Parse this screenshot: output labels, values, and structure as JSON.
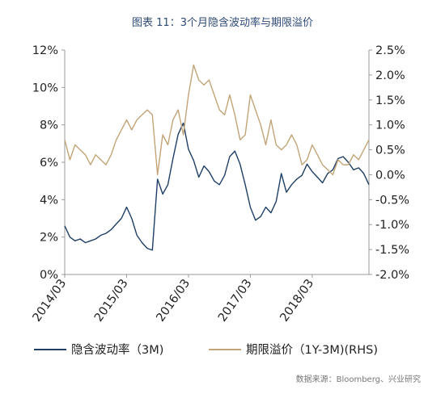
{
  "chart_data": {
    "type": "line",
    "title": "图表 11：3个月隐含波动率与期限溢价",
    "source": "数据来源：Bloomberg、兴业研究",
    "x_ticks": [
      "2014/03",
      "2015/03",
      "2016/03",
      "2017/03",
      "2018/03"
    ],
    "x_range": [
      "2014-03",
      "2019-02"
    ],
    "y_left": {
      "lim": [
        0,
        12
      ],
      "ticks": [
        0,
        2,
        4,
        6,
        8,
        10,
        12
      ],
      "tick_labels": [
        "0%",
        "2%",
        "4%",
        "6%",
        "8%",
        "10%",
        "12%"
      ]
    },
    "y_right": {
      "lim": [
        -2.0,
        2.5
      ],
      "ticks": [
        -2.0,
        -1.5,
        -1.0,
        -0.5,
        0.0,
        0.5,
        1.0,
        1.5,
        2.0,
        2.5
      ],
      "tick_labels": [
        "-2.0%",
        "-1.5%",
        "-1.0%",
        "-0.5%",
        "0.0%",
        "0.5%",
        "1.0%",
        "1.5%",
        "2.0%",
        "2.5%"
      ]
    },
    "grid": false,
    "legend_position": "bottom",
    "series": [
      {
        "name": "隐含波动率（3M)",
        "axis": "left",
        "color": "#1f3f66",
        "points": [
          [
            "2014-03",
            2.6
          ],
          [
            "2014-04",
            2.0
          ],
          [
            "2014-05",
            1.8
          ],
          [
            "2014-06",
            1.9
          ],
          [
            "2014-07",
            1.7
          ],
          [
            "2014-08",
            1.8
          ],
          [
            "2014-09",
            1.9
          ],
          [
            "2014-10",
            2.1
          ],
          [
            "2014-11",
            2.2
          ],
          [
            "2014-12",
            2.4
          ],
          [
            "2015-01",
            2.7
          ],
          [
            "2015-02",
            3.0
          ],
          [
            "2015-03",
            3.6
          ],
          [
            "2015-04",
            3.0
          ],
          [
            "2015-05",
            2.1
          ],
          [
            "2015-06",
            1.7
          ],
          [
            "2015-07",
            1.4
          ],
          [
            "2015-08",
            1.3
          ],
          [
            "2015-09",
            5.1
          ],
          [
            "2015-10",
            4.3
          ],
          [
            "2015-11",
            4.8
          ],
          [
            "2015-12",
            6.2
          ],
          [
            "2016-01",
            7.5
          ],
          [
            "2016-02",
            8.1
          ],
          [
            "2016-03",
            6.7
          ],
          [
            "2016-04",
            6.1
          ],
          [
            "2016-05",
            5.2
          ],
          [
            "2016-06",
            5.8
          ],
          [
            "2016-07",
            5.5
          ],
          [
            "2016-08",
            5.0
          ],
          [
            "2016-09",
            4.8
          ],
          [
            "2016-10",
            5.3
          ],
          [
            "2016-11",
            6.3
          ],
          [
            "2016-12",
            6.6
          ],
          [
            "2017-01",
            5.9
          ],
          [
            "2017-02",
            4.8
          ],
          [
            "2017-03",
            3.6
          ],
          [
            "2017-04",
            2.9
          ],
          [
            "2017-05",
            3.1
          ],
          [
            "2017-06",
            3.6
          ],
          [
            "2017-07",
            3.3
          ],
          [
            "2017-08",
            3.9
          ],
          [
            "2017-09",
            5.4
          ],
          [
            "2017-10",
            4.4
          ],
          [
            "2017-11",
            4.8
          ],
          [
            "2017-12",
            5.1
          ],
          [
            "2018-01",
            5.3
          ],
          [
            "2018-02",
            5.9
          ],
          [
            "2018-03",
            5.5
          ],
          [
            "2018-04",
            5.2
          ],
          [
            "2018-05",
            4.9
          ],
          [
            "2018-06",
            5.4
          ],
          [
            "2018-07",
            5.6
          ],
          [
            "2018-08",
            6.2
          ],
          [
            "2018-09",
            6.3
          ],
          [
            "2018-10",
            6.0
          ],
          [
            "2018-11",
            5.6
          ],
          [
            "2018-12",
            5.7
          ],
          [
            "2019-01",
            5.4
          ],
          [
            "2019-02",
            4.8
          ]
        ]
      },
      {
        "name": "期限溢价（1Y-3M)(RHS)",
        "axis": "right",
        "color": "#c2a477",
        "points": [
          [
            "2014-03",
            0.7
          ],
          [
            "2014-04",
            0.3
          ],
          [
            "2014-05",
            0.6
          ],
          [
            "2014-06",
            0.5
          ],
          [
            "2014-07",
            0.4
          ],
          [
            "2014-08",
            0.2
          ],
          [
            "2014-09",
            0.4
          ],
          [
            "2014-10",
            0.3
          ],
          [
            "2014-11",
            0.2
          ],
          [
            "2014-12",
            0.4
          ],
          [
            "2015-01",
            0.7
          ],
          [
            "2015-02",
            0.9
          ],
          [
            "2015-03",
            1.1
          ],
          [
            "2015-04",
            0.9
          ],
          [
            "2015-05",
            1.1
          ],
          [
            "2015-06",
            1.2
          ],
          [
            "2015-07",
            1.3
          ],
          [
            "2015-08",
            1.2
          ],
          [
            "2015-09",
            0.0
          ],
          [
            "2015-10",
            0.8
          ],
          [
            "2015-11",
            0.6
          ],
          [
            "2015-12",
            1.1
          ],
          [
            "2016-01",
            1.3
          ],
          [
            "2016-02",
            0.8
          ],
          [
            "2016-03",
            1.6
          ],
          [
            "2016-04",
            2.2
          ],
          [
            "2016-05",
            1.9
          ],
          [
            "2016-06",
            1.8
          ],
          [
            "2016-07",
            1.9
          ],
          [
            "2016-08",
            1.6
          ],
          [
            "2016-09",
            1.3
          ],
          [
            "2016-10",
            1.2
          ],
          [
            "2016-11",
            1.6
          ],
          [
            "2016-12",
            1.2
          ],
          [
            "2017-01",
            0.7
          ],
          [
            "2017-02",
            0.8
          ],
          [
            "2017-03",
            1.6
          ],
          [
            "2017-04",
            1.3
          ],
          [
            "2017-05",
            1.0
          ],
          [
            "2017-06",
            0.6
          ],
          [
            "2017-07",
            1.1
          ],
          [
            "2017-08",
            0.6
          ],
          [
            "2017-09",
            0.5
          ],
          [
            "2017-10",
            0.6
          ],
          [
            "2017-11",
            0.8
          ],
          [
            "2017-12",
            0.6
          ],
          [
            "2018-01",
            0.2
          ],
          [
            "2018-02",
            0.3
          ],
          [
            "2018-03",
            0.6
          ],
          [
            "2018-04",
            0.4
          ],
          [
            "2018-05",
            0.2
          ],
          [
            "2018-06",
            0.1
          ],
          [
            "2018-07",
            0.0
          ],
          [
            "2018-08",
            0.3
          ],
          [
            "2018-09",
            0.2
          ],
          [
            "2018-10",
            0.2
          ],
          [
            "2018-11",
            0.4
          ],
          [
            "2018-12",
            0.3
          ],
          [
            "2019-01",
            0.5
          ],
          [
            "2019-02",
            0.7
          ]
        ]
      }
    ]
  }
}
